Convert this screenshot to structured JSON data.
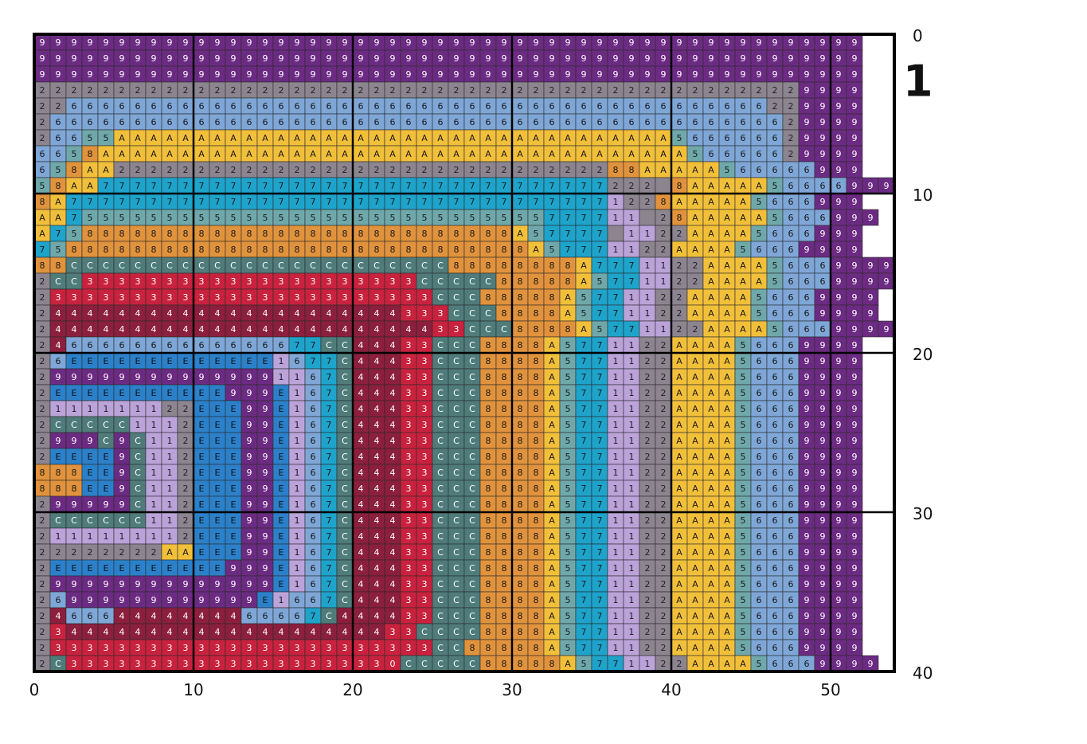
{
  "page_number": "1",
  "grid": {
    "xticks": [
      0,
      10,
      20,
      30,
      40,
      50
    ],
    "yticks": [
      0,
      10,
      20,
      30,
      40
    ],
    "rows": [
      "9999999999999999999999999999999999999999999999999999",
      "9999999999999999999999999999999999999999999999999999",
      "9999999999999999999999999999999999999999999999999999",
      "2222222222222222222222222222222222222222222222229999",
      "2266666666666666666666666666666666666666666666229999",
      "2666666666666666666666666666666666666666666666629999",
      "26655AAAAAAAAAAAAAAAAAAAAAAAAAAAAAAAAAAA566666629999",
      "6658AAAAAAAAAAAAAAAAAAAAAAAAAAAAAAAAAAAAA56666629999",
      "658AA222222222222222222222222222222288AAAAA566666999",
      "58AA77777777777777777777777777777777222 8AAAAA56666999",
      "8A77777777777777777777777777777777771228AAAAA5666999",
      "AA755555555555555555555555555555777711 28AAAAA5666999",
      "A75888888888888888888888888888A57777 1122AAAA5666999",
      "7588888888888888888888888888888A57771122AAAA56669999",
      "88CCCCCCCCCCCCCCCCCCCCCCCC88888888A7771122AAAA56669999",
      "2CC333333333333333333333CCCCC88888A5771122AAAA56669999",
      "2333333333333333333333333CCC88888A5771122AAAA56669999",
      "24444444444444444444444333CCC8888A5771122AAAA56669999",
      "244444444444444444444444433CCC8888A5771122AAAA56669999",
      "246666666666666677CC44433CCC8888A5771122AAAA56669999",
      "26EEEEEEEEEEEEE1677C44433CCC8888A5771122AAAA56669999",
      "2999999999999991167C44433CCC8888A5771122AAAA56669999",
      "2EEEEEEEEEEE999E167C44433CCC8888A5771122AAAA56669999",
      "2111111122EEE99E167C44433CCC8888A5771122AAAA56669999",
      "2CCCCC1112EEE99E167C44433CCC8888A5771122AAAA56669999",
      "2999C9C112EEE99E167C44433CCC8888A5771122AAAA56669999",
      "2EEEE9C112EEE99E167C44433CCC8888A5771122AAAA56669999",
      "888EE9C112EEE99E167C44433CCC8888A5771122AAAA56669999",
      "888EE9C112EEE99E167C44433CCC8888A5771122AAAA56669999",
      "299999C112EEE99E167C44433CCC8888A5771122AAAA56669999",
      "2CCCCCC112EEE99E167C44433CCC8888A5771122AAAA56669999",
      "2111111112EEE99E167C44433CCC8888A5771122AAAA56669999",
      "22222222AAEEE99E167C44433CCC8888A5771122AAAA56669999",
      "2EEEEEEEEEEE999E167C44433CCC8888A5771122AAAA56669999",
      "299999999999999E167C44433CCC8888A5771122AAAA56669999",
      "26999999999999E1667C44433CCC8888A5771122AAAA56669999",
      "246664444444466667C444433CCC8888A5771122AAAA56669999",
      "234444444444444444444433CCCC8888A5771122AAAA56669999",
      "2333333333333333333333333CC88888A5771122AAAA56669999",
      "2C333333333333333333330CCCCC88888A5771122AAAA56669999"
    ]
  },
  "palette": {
    "9": {
      "fill": "#6c2b82",
      "text": "#ffffff"
    },
    "2": {
      "fill": "#8c8590",
      "text": "#222222"
    },
    "6": {
      "fill": "#7ea6d6",
      "text": "#1a1a1a"
    },
    "5": {
      "fill": "#6fa8aa",
      "text": "#1a1a1a"
    },
    "A": {
      "fill": "#f1bf3a",
      "text": "#1a1a1a"
    },
    "8": {
      "fill": "#e0923c",
      "text": "#1a1a1a"
    },
    "7": {
      "fill": "#1ea3cb",
      "text": "#1a1a1a"
    },
    "1": {
      "fill": "#bba3da",
      "text": "#1a1a1a"
    },
    "C": {
      "fill": "#4f7c7a",
      "text": "#ffffff"
    },
    "3": {
      "fill": "#c9223e",
      "text": "#ffffff"
    },
    "4": {
      "fill": "#8b1f3d",
      "text": "#ffffff"
    },
    "E": {
      "fill": "#2b80ca",
      "text": "#111111"
    },
    "0": {
      "fill": "#c9223e",
      "text": "#ffffff"
    },
    " ": {
      "fill": "#8c8590",
      "text": "#222222"
    }
  }
}
